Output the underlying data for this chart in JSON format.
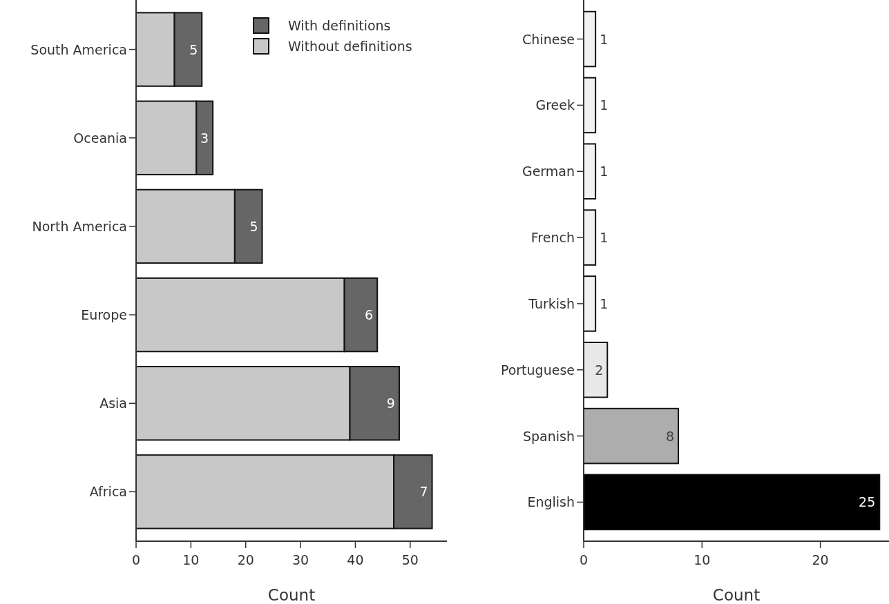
{
  "chart_data": [
    {
      "type": "bar",
      "orientation": "horizontal",
      "stacked": true,
      "categories": [
        "South America",
        "Oceania",
        "North America",
        "Europe",
        "Asia",
        "Africa"
      ],
      "xlabel": "Count",
      "xlim": [
        0,
        56.7
      ],
      "xticks": [
        0,
        10,
        20,
        30,
        40,
        50
      ],
      "legend": "top right",
      "series": [
        {
          "name": "Without definitions",
          "color": "#c8c8c8",
          "values": [
            7,
            11,
            18,
            38,
            39,
            47
          ]
        },
        {
          "name": "With definitions",
          "color": "#666666",
          "values": [
            5,
            3,
            5,
            6,
            9,
            7
          ],
          "value_labels": [
            "5",
            "3",
            "5",
            "6",
            "9",
            "7"
          ]
        }
      ]
    },
    {
      "type": "bar",
      "orientation": "horizontal",
      "categories": [
        "Chinese",
        "Greek",
        "German",
        "French",
        "Turkish",
        "Portuguese",
        "Spanish",
        "English"
      ],
      "xlabel": "Count",
      "xlim": [
        0,
        25.8
      ],
      "xticks": [
        0,
        10,
        20
      ],
      "data_labels": true,
      "values": [
        1,
        1,
        1,
        1,
        1,
        2,
        8,
        25
      ],
      "colors": [
        "#f2f2f2",
        "#f2f2f2",
        "#f2f2f2",
        "#f2f2f2",
        "#f2f2f2",
        "#e8e8e8",
        "#adadad",
        "#000000"
      ]
    }
  ]
}
